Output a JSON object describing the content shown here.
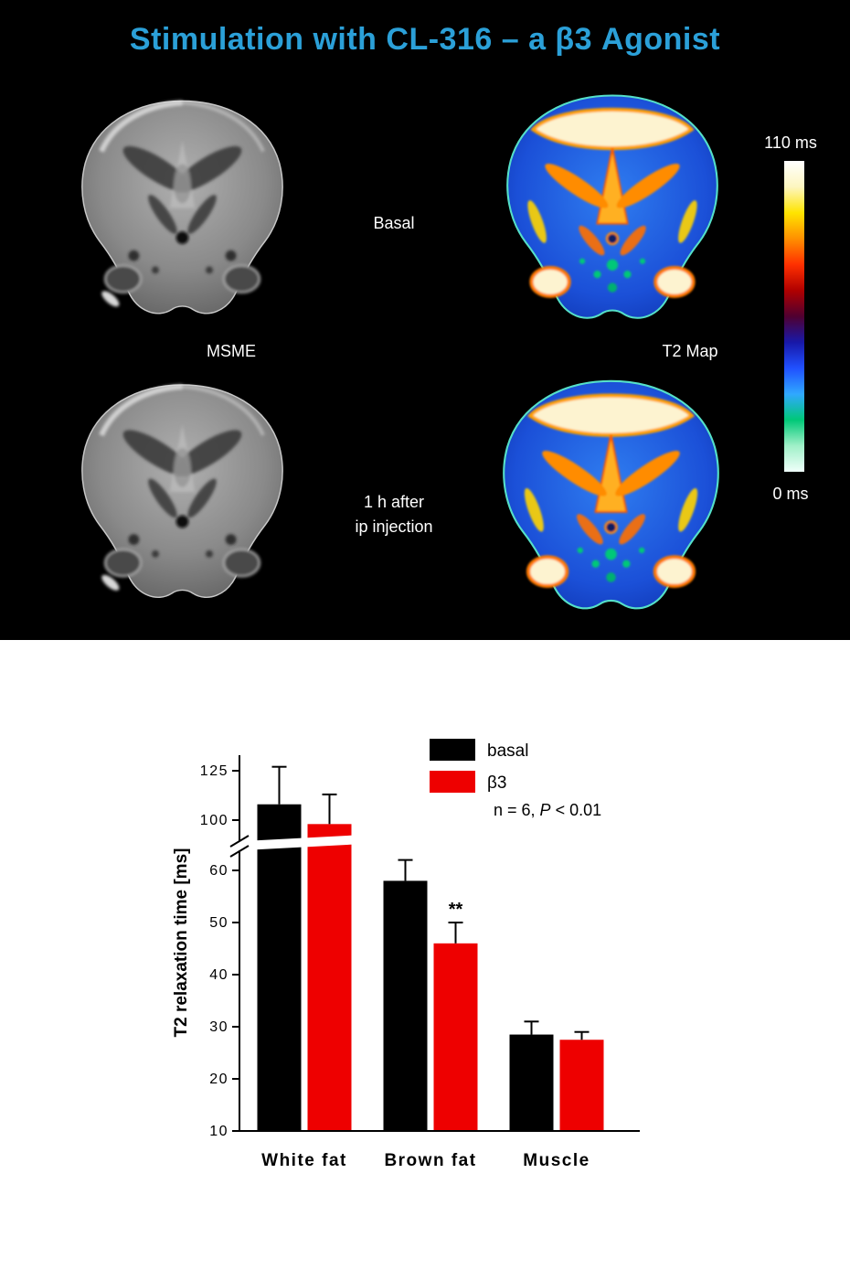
{
  "slide": {
    "title": "Stimulation with CL-316 – a β3 Agonist",
    "title_color": "#2ba0d8",
    "labels": {
      "basal": "Basal",
      "msme": "MSME",
      "t2map": "T2 Map",
      "after_line1": "1 h after",
      "after_line2": "ip injection"
    },
    "colorbar": {
      "top_label": "110 ms",
      "bottom_label": "0 ms",
      "stops": [
        "#ffffff",
        "#fdf6c0",
        "#ffe400",
        "#ff9000",
        "#ff3000",
        "#b00000",
        "#500030",
        "#1818a8",
        "#2050ff",
        "#30a8ff",
        "#00c878",
        "#a0f0c8",
        "#f0fffa"
      ]
    }
  },
  "chart_data": {
    "type": "bar",
    "title": "",
    "categories": [
      "White fat",
      "Brown fat",
      "Muscle"
    ],
    "series": [
      {
        "name": "basal",
        "color": "#000000",
        "values": [
          108,
          58,
          28.5
        ],
        "errors": [
          19,
          4,
          2.5
        ]
      },
      {
        "name": "β3",
        "color": "#ee0000",
        "values": [
          98,
          46,
          27.5
        ],
        "errors": [
          15,
          4,
          1.5
        ]
      }
    ],
    "ylabel": "T2 relaxation time [ms]",
    "xlabel": "",
    "yticks_lower": [
      10,
      20,
      30,
      40,
      50,
      60
    ],
    "yticks_upper": [
      100,
      125
    ],
    "ylim_lower": [
      10,
      65
    ],
    "ylim_upper": [
      95,
      130
    ],
    "axis_break": true,
    "grid": false,
    "legend_position": "upper right",
    "note_parts": {
      "prefix": "n = 6, ",
      "italic": "P",
      "suffix": " < 0.01"
    },
    "significance": {
      "text": "**",
      "category_index": 1,
      "series_index": 1
    }
  }
}
